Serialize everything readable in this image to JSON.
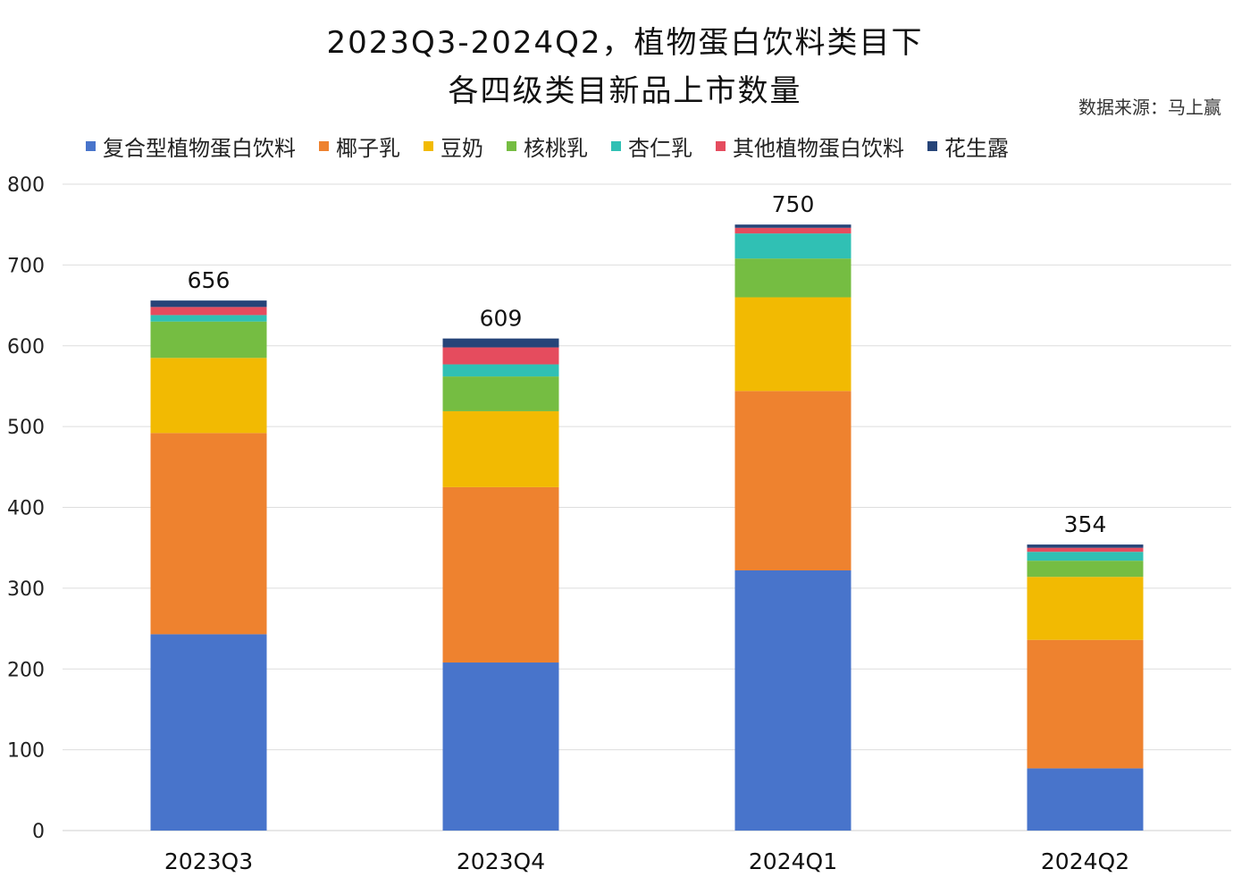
{
  "chart_data": {
    "type": "bar",
    "stacked": true,
    "title": "2023Q3-2024Q2，植物蛋白饮料类目下",
    "subtitle": "各四级类目新品上市数量",
    "source": "数据来源：马上赢",
    "xlabel": "",
    "ylabel": "",
    "ylim": [
      0,
      800
    ],
    "yticks": [
      0,
      100,
      200,
      300,
      400,
      500,
      600,
      700,
      800
    ],
    "grid": true,
    "legend_position": "top",
    "categories": [
      "2023Q3",
      "2023Q4",
      "2024Q1",
      "2024Q2"
    ],
    "totals": [
      656,
      609,
      750,
      354
    ],
    "series": [
      {
        "name": "复合型植物蛋白饮料",
        "color": "#4874CB",
        "values": [
          243,
          208,
          322,
          77
        ]
      },
      {
        "name": "椰子乳",
        "color": "#EE822F",
        "values": [
          249,
          217,
          222,
          159
        ]
      },
      {
        "name": "豆奶",
        "color": "#F2BA02",
        "values": [
          93,
          94,
          116,
          78
        ]
      },
      {
        "name": "核桃乳",
        "color": "#75BD42",
        "values": [
          45,
          43,
          48,
          20
        ]
      },
      {
        "name": "杏仁乳",
        "color": "#30C0B4",
        "values": [
          8,
          15,
          31,
          11
        ]
      },
      {
        "name": "其他植物蛋白饮料",
        "color": "#E54C5E",
        "values": [
          10,
          21,
          7,
          5
        ]
      },
      {
        "name": "花生露",
        "color": "#264478",
        "values": [
          8,
          11,
          4,
          4
        ]
      }
    ]
  }
}
